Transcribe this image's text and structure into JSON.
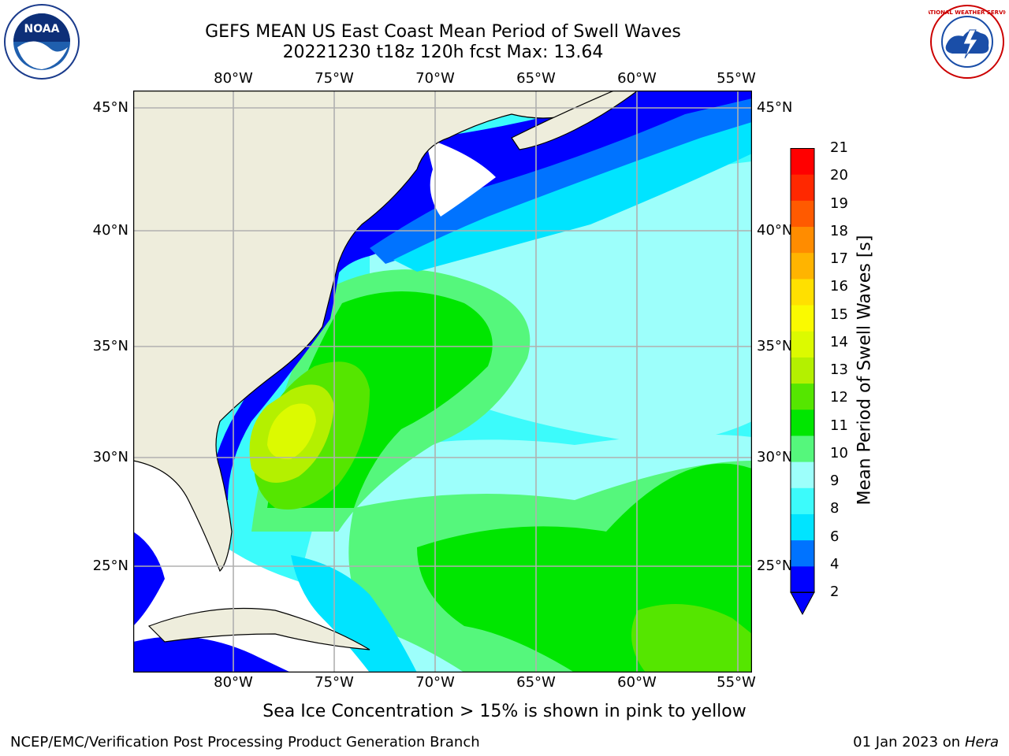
{
  "header": {
    "title_line1": "GEFS MEAN US East Coast Mean Period of Swell Waves",
    "title_line2": "20221230 t18z 120h fcst   Max: 13.64"
  },
  "map": {
    "lon_labels": [
      "80°W",
      "75°W",
      "70°W",
      "65°W",
      "60°W",
      "55°W"
    ],
    "lat_labels": [
      "45°N",
      "40°N",
      "35°N",
      "30°N",
      "25°N"
    ],
    "colors": {
      "land": "#eeeddc",
      "ocean_fill_missing": "#ffffff",
      "gridline": "#b0b0b0",
      "coast": "#000000"
    }
  },
  "colorbar": {
    "label": "Mean Period of Swell Waves [s]",
    "ticks": [
      "21",
      "20",
      "19",
      "18",
      "17",
      "16",
      "15",
      "14",
      "13",
      "12",
      "11",
      "10",
      "9",
      "8",
      "6",
      "4",
      "2"
    ],
    "colors": [
      "#0000ff",
      "#0073ff",
      "#00e4ff",
      "#3cfbfb",
      "#9dfffb",
      "#55f77c",
      "#00e600",
      "#55e600",
      "#b4f000",
      "#dcfa00",
      "#fafa00",
      "#ffe000",
      "#ffb400",
      "#ff8c00",
      "#ff5a00",
      "#ff2800",
      "#ff0000"
    ]
  },
  "logos": {
    "left": "noaa-logo",
    "left_text": "NOAA",
    "right": "nws-logo",
    "right_text": "NATIONAL WEATHER SERVICE"
  },
  "notes": {
    "ice_note": "Sea Ice Concentration > 15% is shown in pink to yellow",
    "footer_left": "NCEP/EMC/Verification Post Processing Product Generation Branch",
    "footer_date": "01 Jan 2023 on ",
    "footer_host": "Hera"
  }
}
